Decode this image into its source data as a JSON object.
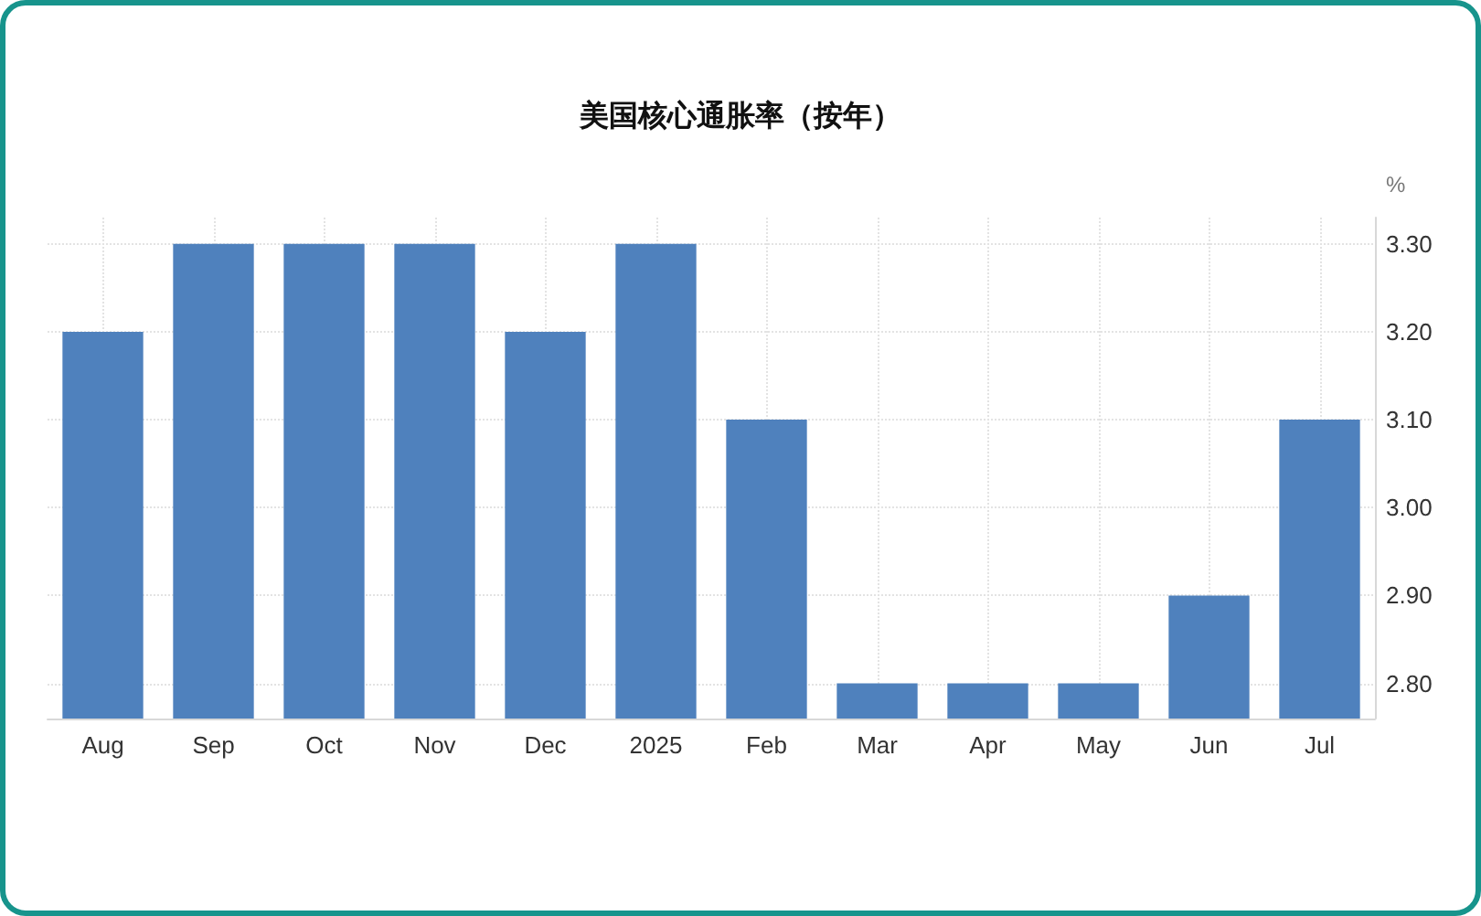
{
  "chart_data": {
    "type": "bar",
    "title": "美国核心通胀率（按年）",
    "ylabel": "%",
    "categories": [
      "Aug",
      "Sep",
      "Oct",
      "Nov",
      "Dec",
      "2025",
      "Feb",
      "Mar",
      "Apr",
      "May",
      "Jun",
      "Jul"
    ],
    "values": [
      3.2,
      3.3,
      3.3,
      3.3,
      3.2,
      3.3,
      3.1,
      2.8,
      2.8,
      2.8,
      2.9,
      3.1
    ],
    "color": "#4f81bd",
    "ylim": [
      2.76,
      3.33
    ],
    "yticks": [
      {
        "value": 2.8,
        "label": "2.80"
      },
      {
        "value": 2.9,
        "label": "2.90"
      },
      {
        "value": 3.0,
        "label": "3.00"
      },
      {
        "value": 3.1,
        "label": "3.10"
      },
      {
        "value": 3.2,
        "label": "3.20"
      },
      {
        "value": 3.3,
        "label": "3.30"
      }
    ],
    "grid": true
  }
}
